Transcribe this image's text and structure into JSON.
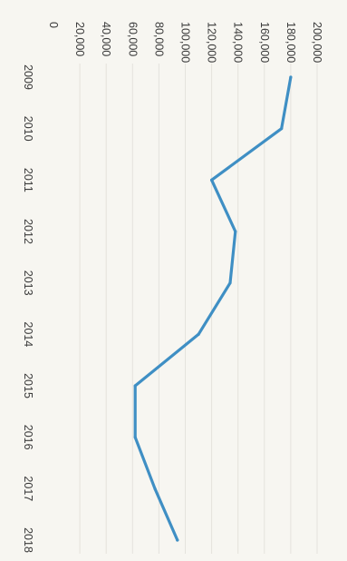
{
  "chart_data": {
    "type": "line",
    "orientation": "rotated 90° clockwise",
    "categories": [
      "2009",
      "2010",
      "2011",
      "2012",
      "2013",
      "2014",
      "2015",
      "2016",
      "2017",
      "2018"
    ],
    "series": [
      {
        "values": [
          180000,
          173000,
          120000,
          138000,
          134000,
          110000,
          62000,
          62000,
          77000,
          94000
        ]
      }
    ],
    "y_ticks": [
      "0",
      "20,000",
      "40,000",
      "60,000",
      "80,000",
      "100,000",
      "120,000",
      "140,000",
      "160,000",
      "180,000",
      "200,000"
    ],
    "ylim": [
      0,
      200000
    ],
    "grid": true,
    "title": "",
    "xlabel": "",
    "ylabel": ""
  },
  "colors": {
    "line": "#3f8fc4",
    "background": "#f7f6f1"
  }
}
